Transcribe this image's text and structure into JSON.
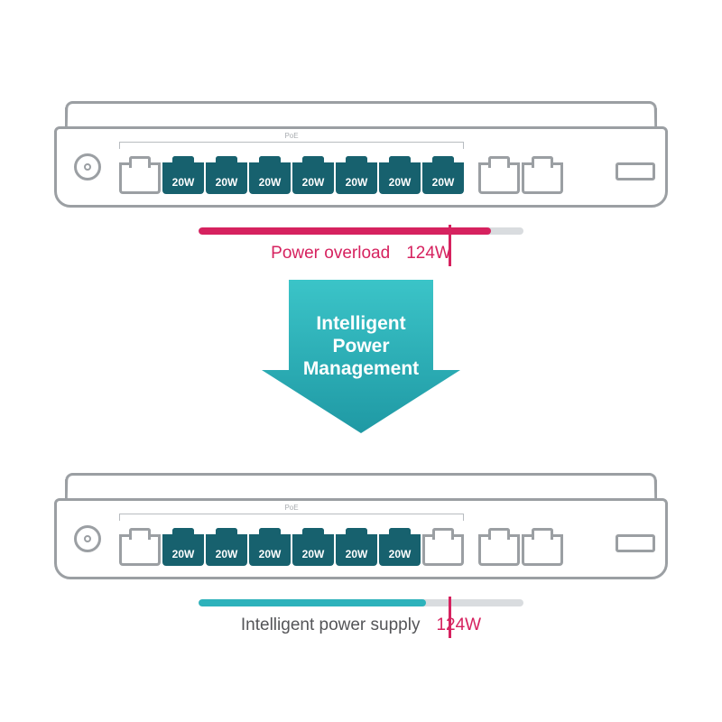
{
  "colors": {
    "outline": "#9b9fa3",
    "port_fill": "#17616e",
    "overload": "#d6225f",
    "intelligent": "#2db2bb",
    "track": "#d9dcdf",
    "text_gray": "#545558",
    "arrow_top": "#3bc4c8",
    "arrow_bottom": "#1f99a4"
  },
  "poe_bracket_label": "PoE",
  "top_switch": {
    "ports_powered": 7,
    "port_labels": [
      "20W",
      "20W",
      "20W",
      "20W",
      "20W",
      "20W",
      "20W"
    ],
    "status_label": "Power overload",
    "status_value": "124W",
    "bar_fill_percent": 90,
    "limit_marker_percent": 77,
    "bar_color": "#d6225f"
  },
  "arrow": {
    "line1": "Intelligent",
    "line2": "Power",
    "line3": "Management"
  },
  "bottom_switch": {
    "ports_powered": 6,
    "port_labels": [
      "20W",
      "20W",
      "20W",
      "20W",
      "20W",
      "20W"
    ],
    "status_label": "Intelligent power supply",
    "status_value": "124W",
    "bar_fill_percent": 70,
    "limit_marker_percent": 77,
    "bar_color": "#2db2bb"
  }
}
